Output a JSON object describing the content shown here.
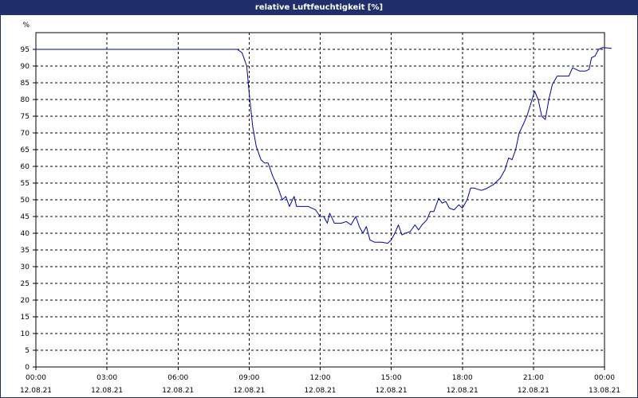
{
  "window": {
    "title": "relative Luftfeuchtigkeit [%]"
  },
  "colors": {
    "title_bar": "#1f2f6b",
    "series": "#0000aa",
    "grid": "#000000",
    "axis": "#000000"
  },
  "chart_data": {
    "type": "line",
    "title": "relative Luftfeuchtigkeit [%]",
    "xlabel": "",
    "ylabel": "%",
    "ylim": [
      0,
      100
    ],
    "y_ticks": [
      0,
      5,
      10,
      15,
      20,
      25,
      30,
      35,
      40,
      45,
      50,
      55,
      60,
      65,
      70,
      75,
      80,
      85,
      90,
      95
    ],
    "y_unit_label": "%",
    "x_range_hours": [
      0,
      24
    ],
    "x_ticks": [
      {
        "hour": 0,
        "time": "00:00",
        "date": "12.08.21"
      },
      {
        "hour": 3,
        "time": "03:00",
        "date": "12.08.21"
      },
      {
        "hour": 6,
        "time": "06:00",
        "date": "12.08.21"
      },
      {
        "hour": 9,
        "time": "09:00",
        "date": "12.08.21"
      },
      {
        "hour": 12,
        "time": "12:00",
        "date": "12.08.21"
      },
      {
        "hour": 15,
        "time": "15:00",
        "date": "12.08.21"
      },
      {
        "hour": 18,
        "time": "18:00",
        "date": "12.08.21"
      },
      {
        "hour": 21,
        "time": "21:00",
        "date": "12.08.21"
      },
      {
        "hour": 24,
        "time": "00:00",
        "date": "13.08.21"
      }
    ],
    "grid": true,
    "legend": "none",
    "series": [
      {
        "points": [
          [
            0,
            95
          ],
          [
            8.5,
            95
          ],
          [
            8.7,
            94
          ],
          [
            8.9,
            90
          ],
          [
            9.0,
            82
          ],
          [
            9.15,
            72
          ],
          [
            9.3,
            66
          ],
          [
            9.5,
            62
          ],
          [
            9.65,
            61
          ],
          [
            9.8,
            61
          ],
          [
            10.0,
            57
          ],
          [
            10.2,
            54
          ],
          [
            10.4,
            50
          ],
          [
            10.55,
            51
          ],
          [
            10.7,
            48
          ],
          [
            10.9,
            51
          ],
          [
            11.0,
            48
          ],
          [
            11.2,
            48
          ],
          [
            11.5,
            48
          ],
          [
            11.8,
            47
          ],
          [
            12.0,
            45
          ],
          [
            12.15,
            45
          ],
          [
            12.3,
            43
          ],
          [
            12.4,
            46
          ],
          [
            12.6,
            43
          ],
          [
            12.9,
            43
          ],
          [
            13.1,
            43.5
          ],
          [
            13.3,
            42.5
          ],
          [
            13.5,
            45
          ],
          [
            13.65,
            42
          ],
          [
            13.8,
            40
          ],
          [
            13.95,
            42
          ],
          [
            14.1,
            38
          ],
          [
            14.3,
            37.3
          ],
          [
            14.6,
            37.3
          ],
          [
            14.85,
            37
          ],
          [
            15.0,
            38
          ],
          [
            15.15,
            40
          ],
          [
            15.3,
            42.5
          ],
          [
            15.45,
            39.5
          ],
          [
            15.6,
            40
          ],
          [
            15.8,
            40.5
          ],
          [
            16.0,
            42.5
          ],
          [
            16.15,
            41
          ],
          [
            16.3,
            42.5
          ],
          [
            16.5,
            44
          ],
          [
            16.65,
            46.5
          ],
          [
            16.8,
            46.5
          ],
          [
            17.0,
            50.5
          ],
          [
            17.15,
            49
          ],
          [
            17.3,
            49.5
          ],
          [
            17.45,
            47.5
          ],
          [
            17.65,
            47
          ],
          [
            17.85,
            48.5
          ],
          [
            18.0,
            47.5
          ],
          [
            18.2,
            50
          ],
          [
            18.35,
            53.5
          ],
          [
            18.5,
            53.5
          ],
          [
            18.8,
            52.8
          ],
          [
            19.0,
            53.3
          ],
          [
            19.3,
            54.5
          ],
          [
            19.6,
            56.5
          ],
          [
            19.8,
            59
          ],
          [
            19.95,
            62.5
          ],
          [
            20.1,
            62
          ],
          [
            20.25,
            65
          ],
          [
            20.4,
            70
          ],
          [
            20.6,
            73
          ],
          [
            20.75,
            75.5
          ],
          [
            20.9,
            79
          ],
          [
            21.05,
            82.5
          ],
          [
            21.2,
            80
          ],
          [
            21.35,
            75
          ],
          [
            21.5,
            74
          ],
          [
            21.65,
            80
          ],
          [
            21.8,
            84.5
          ],
          [
            22.0,
            87
          ],
          [
            22.3,
            87
          ],
          [
            22.5,
            87
          ],
          [
            22.65,
            89.5
          ],
          [
            22.8,
            89
          ],
          [
            22.95,
            88.5
          ],
          [
            23.2,
            88.5
          ],
          [
            23.35,
            89
          ],
          [
            23.45,
            92.5
          ],
          [
            23.6,
            93
          ],
          [
            23.75,
            95
          ],
          [
            23.9,
            95.5
          ],
          [
            24.0,
            95.5
          ],
          [
            24.3,
            95.3
          ]
        ]
      }
    ]
  }
}
